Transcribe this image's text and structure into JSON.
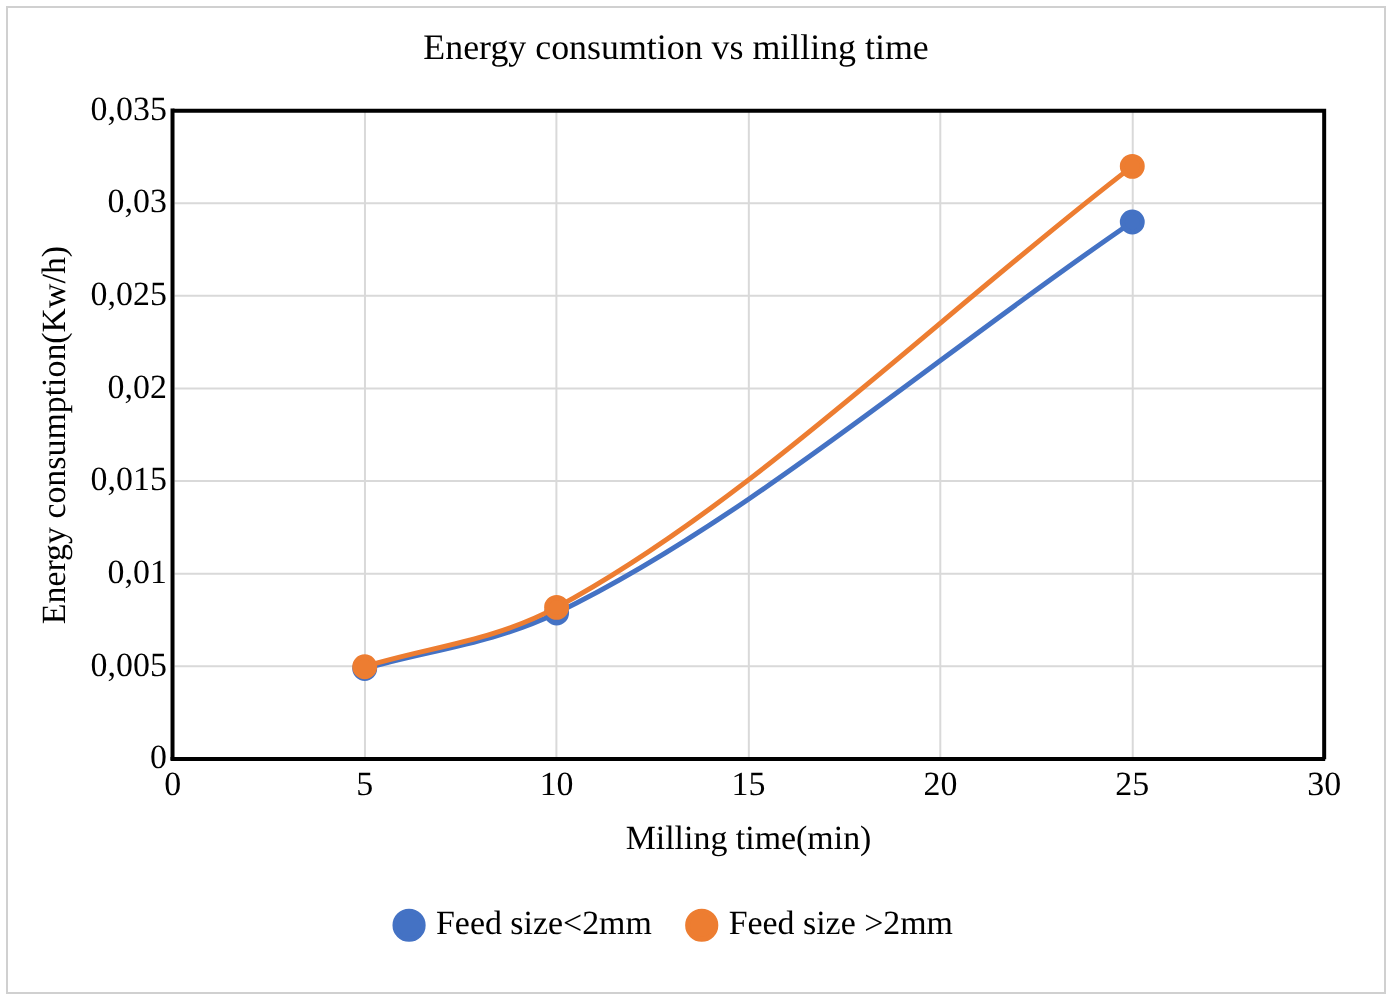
{
  "chart_data": {
    "type": "line",
    "title": "Energy consumtion vs milling time",
    "xlabel": "Milling time(min)",
    "ylabel": "Energy consumption(Kw/h)",
    "x": [
      5,
      10,
      25
    ],
    "series": [
      {
        "name": "Feed size<2mm",
        "color": "#4472c4",
        "values": [
          0.0049,
          0.0079,
          0.029
        ]
      },
      {
        "name": "Feed size >2mm",
        "color": "#ed7d31",
        "values": [
          0.005,
          0.0082,
          0.032
        ]
      }
    ],
    "xlim": [
      0,
      30
    ],
    "xticks": [
      0,
      5,
      10,
      15,
      20,
      25,
      30
    ],
    "ylim": [
      0,
      0.035
    ],
    "yticks": [
      0,
      {
        "value": 0.005,
        "label": "0,005"
      },
      {
        "value": 0.01,
        "label": "0,01"
      },
      {
        "value": 0.015,
        "label": "0,015"
      },
      {
        "value": 0.02,
        "label": "0,02"
      },
      {
        "value": 0.025,
        "label": "0,025"
      },
      {
        "value": 0.03,
        "label": "0,03"
      },
      {
        "value": 0.035,
        "label": "0,035"
      }
    ],
    "grid": true,
    "legend": "bottom",
    "marker": "circle",
    "line_style": "solid"
  }
}
